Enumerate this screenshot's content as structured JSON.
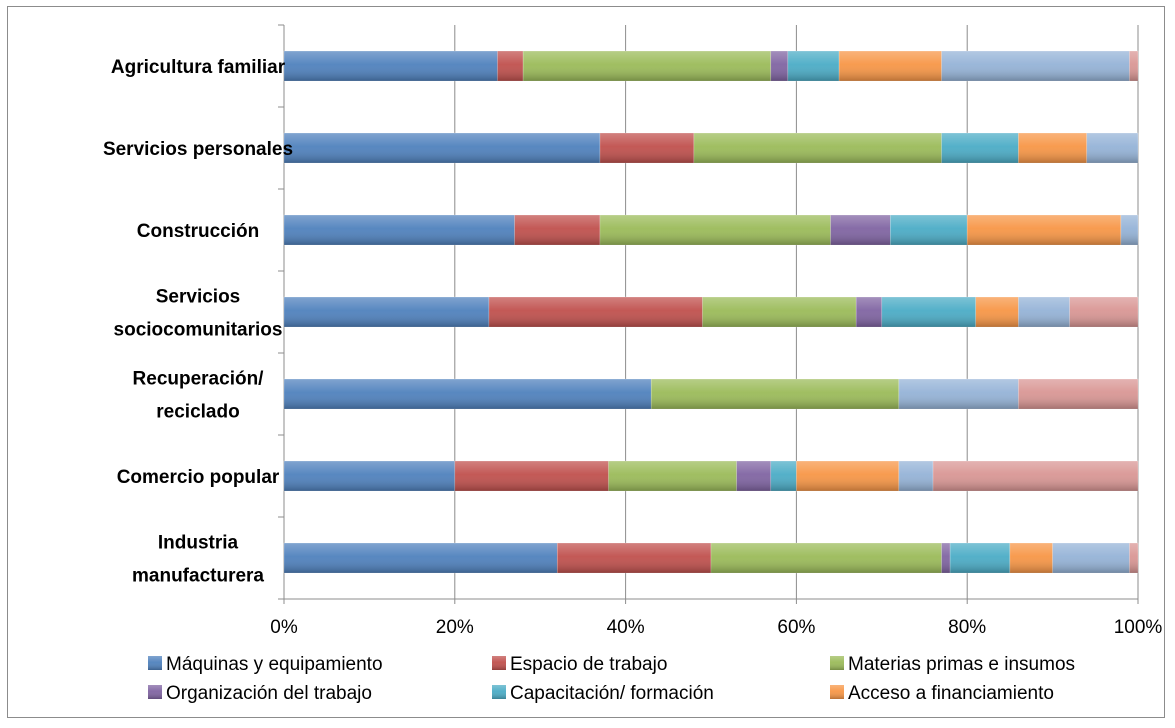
{
  "chart_data": {
    "type": "bar",
    "orientation": "horizontal",
    "stacked": "percent",
    "categories": [
      [
        "Agricultura familiar"
      ],
      [
        "Servicios personales"
      ],
      [
        "Construcción"
      ],
      [
        "Servicios",
        "sociocomunitarios"
      ],
      [
        "Recuperación/",
        "reciclado"
      ],
      [
        "Comercio popular"
      ],
      [
        "Industria",
        "manufacturera"
      ]
    ],
    "xlim": [
      0,
      100
    ],
    "xticks": [
      "0%",
      "20%",
      "40%",
      "60%",
      "80%",
      "100%"
    ],
    "grid": true,
    "legend_position": "bottom",
    "series": [
      {
        "name": "Máquinas y equipamiento",
        "color": "#4f81bd",
        "values": [
          25,
          37,
          27,
          24,
          43,
          20,
          32
        ]
      },
      {
        "name": "Espacio de trabajo",
        "color": "#c0504d",
        "values": [
          3,
          11,
          10,
          25,
          0,
          18,
          18
        ]
      },
      {
        "name": "Materias primas e insumos",
        "color": "#9bbb59",
        "values": [
          29,
          29,
          27,
          18,
          29,
          15,
          27
        ]
      },
      {
        "name": "Organización del trabajo",
        "color": "#8064a2",
        "values": [
          2,
          0,
          7,
          3,
          0,
          4,
          1
        ]
      },
      {
        "name": "Capacitación/ formación",
        "color": "#4bacc6",
        "values": [
          6,
          9,
          9,
          11,
          0,
          3,
          7
        ]
      },
      {
        "name": "Acceso a financiamiento",
        "color": "#f79646",
        "values": [
          12,
          8,
          18,
          5,
          0,
          12,
          5
        ]
      },
      {
        "color": "#95b3d7",
        "values": [
          22,
          6,
          2,
          6,
          14,
          4,
          9
        ]
      },
      {
        "color": "#d99694",
        "values": [
          1,
          0,
          0,
          8,
          14,
          24,
          1
        ]
      }
    ],
    "legend": [
      "Máquinas y equipamiento",
      "Espacio de trabajo",
      "Materias primas e insumos",
      "Organización del trabajo",
      "Capacitación/ formación",
      "Acceso a financiamiento"
    ]
  }
}
